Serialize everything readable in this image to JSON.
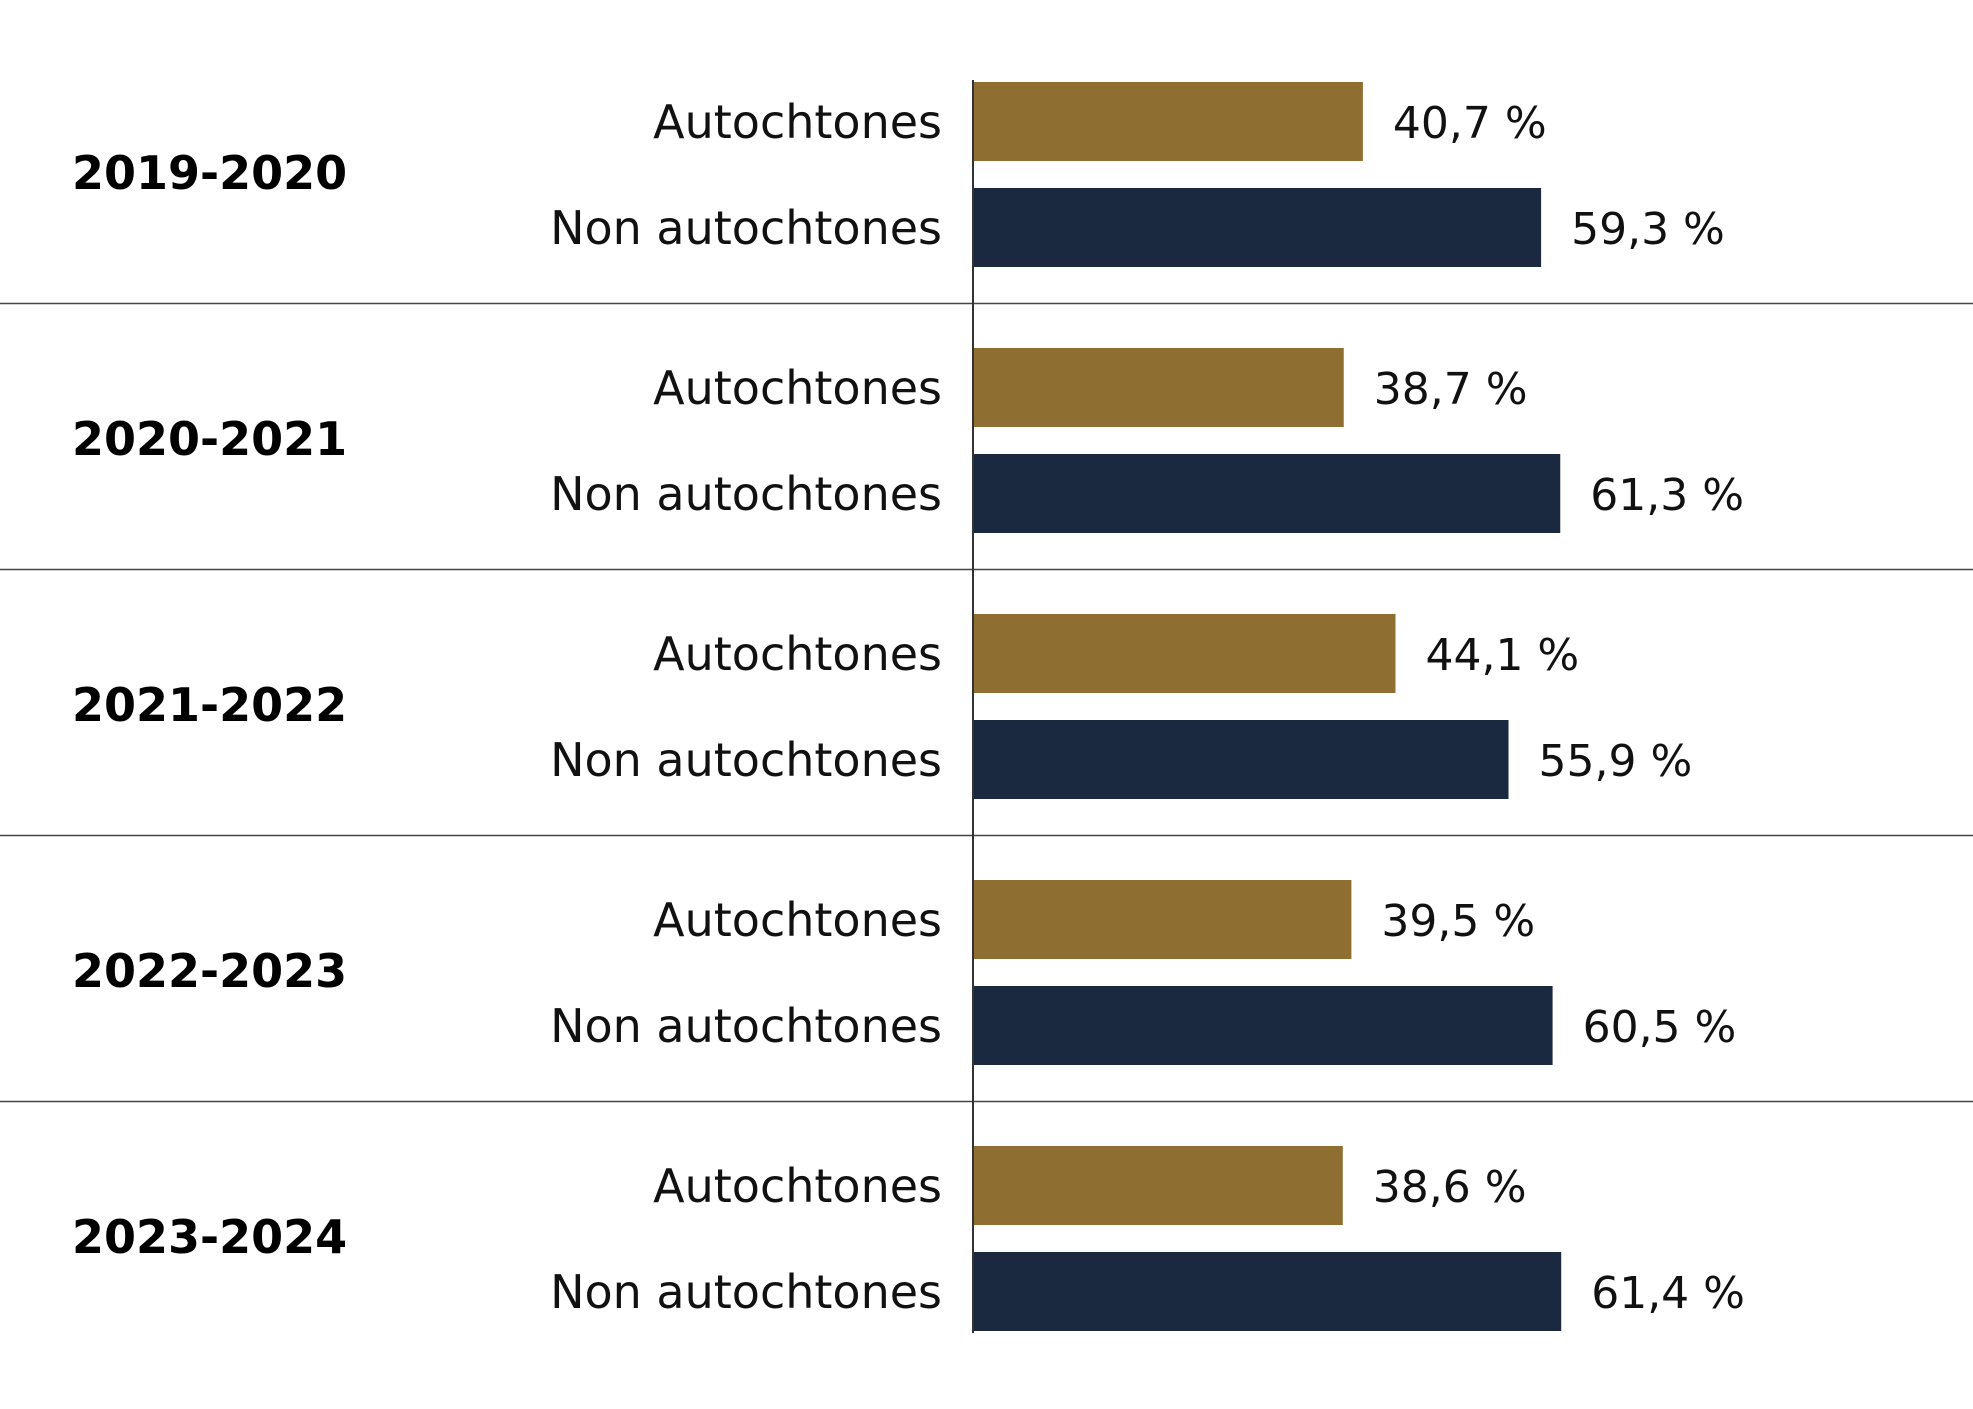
{
  "chart_data": {
    "type": "bar",
    "orientation": "horizontal",
    "grouped": true,
    "title": "",
    "xlabel": "",
    "ylabel": "",
    "xlim": [
      0,
      100
    ],
    "grid": false,
    "legend": "none",
    "categories": [
      "2019-2020",
      "2020-2021",
      "2021-2022",
      "2022-2023",
      "2023-2024"
    ],
    "series": [
      {
        "name": "Autochtones",
        "color": "#8f6f31",
        "values": [
          40.7,
          38.7,
          44.1,
          39.5,
          38.6
        ],
        "labels": [
          "40,7 %",
          "38,7 %",
          "44,1 %",
          "39,5 %",
          "38,6 %"
        ]
      },
      {
        "name": "Non autochtones",
        "color": "#1a2840",
        "values": [
          59.3,
          61.3,
          55.9,
          60.5,
          61.4
        ],
        "labels": [
          "59,3 %",
          "61,3 %",
          "55,9 %",
          "60,5 %",
          "61,4 %"
        ]
      }
    ],
    "colors": {
      "separator": "#444444",
      "axis": "#333333",
      "text": "#111111"
    }
  }
}
